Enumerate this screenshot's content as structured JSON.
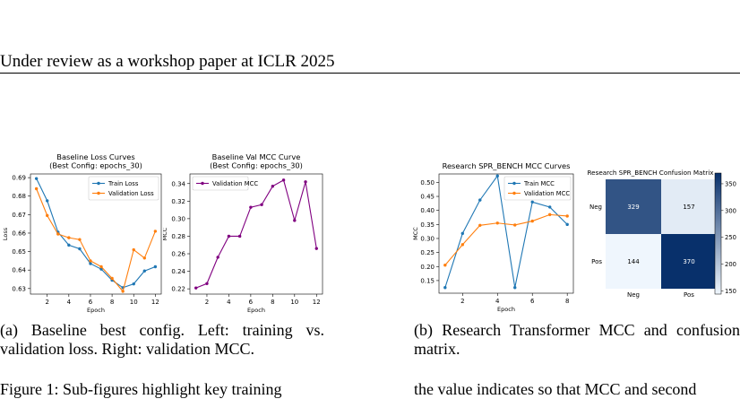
{
  "header": {
    "text": "Under review as a workshop paper at ICLR 2025"
  },
  "captions": {
    "a": "(a) Baseline best config. Left: training vs. validation loss. Right: validation MCC.",
    "b": "(b) Research Transformer MCC and confusion matrix."
  },
  "bottom_text": {
    "left": "Figure 1: Sub-figures highlight key training",
    "right": "the value indicates so that MCC and second"
  },
  "chart_data": [
    {
      "type": "line",
      "title": "Baseline Loss Curves\n(Best Config: epochs_30)",
      "xlabel": "Epoch",
      "ylabel": "Loss",
      "x": [
        1,
        2,
        3,
        4,
        5,
        6,
        7,
        8,
        9,
        10,
        11,
        12
      ],
      "xticks": [
        2,
        4,
        6,
        8,
        10,
        12
      ],
      "yticks": [
        0.63,
        0.64,
        0.65,
        0.66,
        0.67,
        0.68,
        0.69
      ],
      "xlim": [
        0.45,
        12.55
      ],
      "ylim": [
        0.627,
        0.692
      ],
      "legend_position": "upper-right",
      "series": [
        {
          "name": "Train Loss",
          "color": "#1f77b4",
          "values": [
            0.6895,
            0.6775,
            0.6605,
            0.6535,
            0.6515,
            0.6435,
            0.6405,
            0.6345,
            0.6305,
            0.6325,
            0.6395,
            0.6418
          ]
        },
        {
          "name": "Validation Loss",
          "color": "#ff7f0e",
          "values": [
            0.684,
            0.6695,
            0.6595,
            0.6575,
            0.6565,
            0.645,
            0.6418,
            0.6355,
            0.6285,
            0.651,
            0.6465,
            0.661
          ]
        }
      ]
    },
    {
      "type": "line",
      "title": "Baseline Val MCC Curve\n(Best Config: epochs_30)",
      "xlabel": "Epoch",
      "ylabel": "MCC",
      "x": [
        1,
        2,
        3,
        4,
        5,
        6,
        7,
        8,
        9,
        10,
        11,
        12
      ],
      "xticks": [
        2,
        4,
        6,
        8,
        10,
        12
      ],
      "yticks": [
        0.22,
        0.24,
        0.26,
        0.28,
        0.3,
        0.32,
        0.34
      ],
      "xlim": [
        0.45,
        12.55
      ],
      "ylim": [
        0.214,
        0.351
      ],
      "legend_position": "upper-left",
      "series": [
        {
          "name": "Validation MCC",
          "color": "#800080",
          "values": [
            0.221,
            0.226,
            0.256,
            0.28,
            0.28,
            0.313,
            0.316,
            0.337,
            0.344,
            0.298,
            0.342,
            0.266
          ]
        }
      ]
    },
    {
      "type": "line",
      "title": "Research SPR_BENCH MCC Curves",
      "xlabel": "Epoch",
      "ylabel": "MCC",
      "x": [
        1,
        2,
        3,
        4,
        5,
        6,
        7,
        8
      ],
      "xticks": [
        2,
        4,
        6,
        8
      ],
      "yticks": [
        0.15,
        0.2,
        0.25,
        0.3,
        0.35,
        0.4,
        0.45,
        0.5
      ],
      "xlim": [
        0.65,
        8.35
      ],
      "ylim": [
        0.105,
        0.53
      ],
      "legend_position": "upper-right",
      "series": [
        {
          "name": "Train MCC",
          "color": "#1f77b4",
          "values": [
            0.125,
            0.318,
            0.437,
            0.523,
            0.125,
            0.43,
            0.412,
            0.35
          ]
        },
        {
          "name": "Validation MCC",
          "color": "#ff7f0e",
          "values": [
            0.205,
            0.278,
            0.347,
            0.355,
            0.348,
            0.362,
            0.385,
            0.38
          ]
        }
      ]
    },
    {
      "type": "heatmap",
      "title": "Research SPR_BENCH Confusion Matrix",
      "row_labels": [
        "Neg",
        "Pos"
      ],
      "col_labels": [
        "Neg",
        "Pos"
      ],
      "values": [
        [
          329,
          157
        ],
        [
          144,
          370
        ]
      ],
      "colorbar_ticks": [
        150,
        200,
        250,
        300,
        350
      ],
      "colorbar_range": [
        144,
        370
      ]
    }
  ]
}
